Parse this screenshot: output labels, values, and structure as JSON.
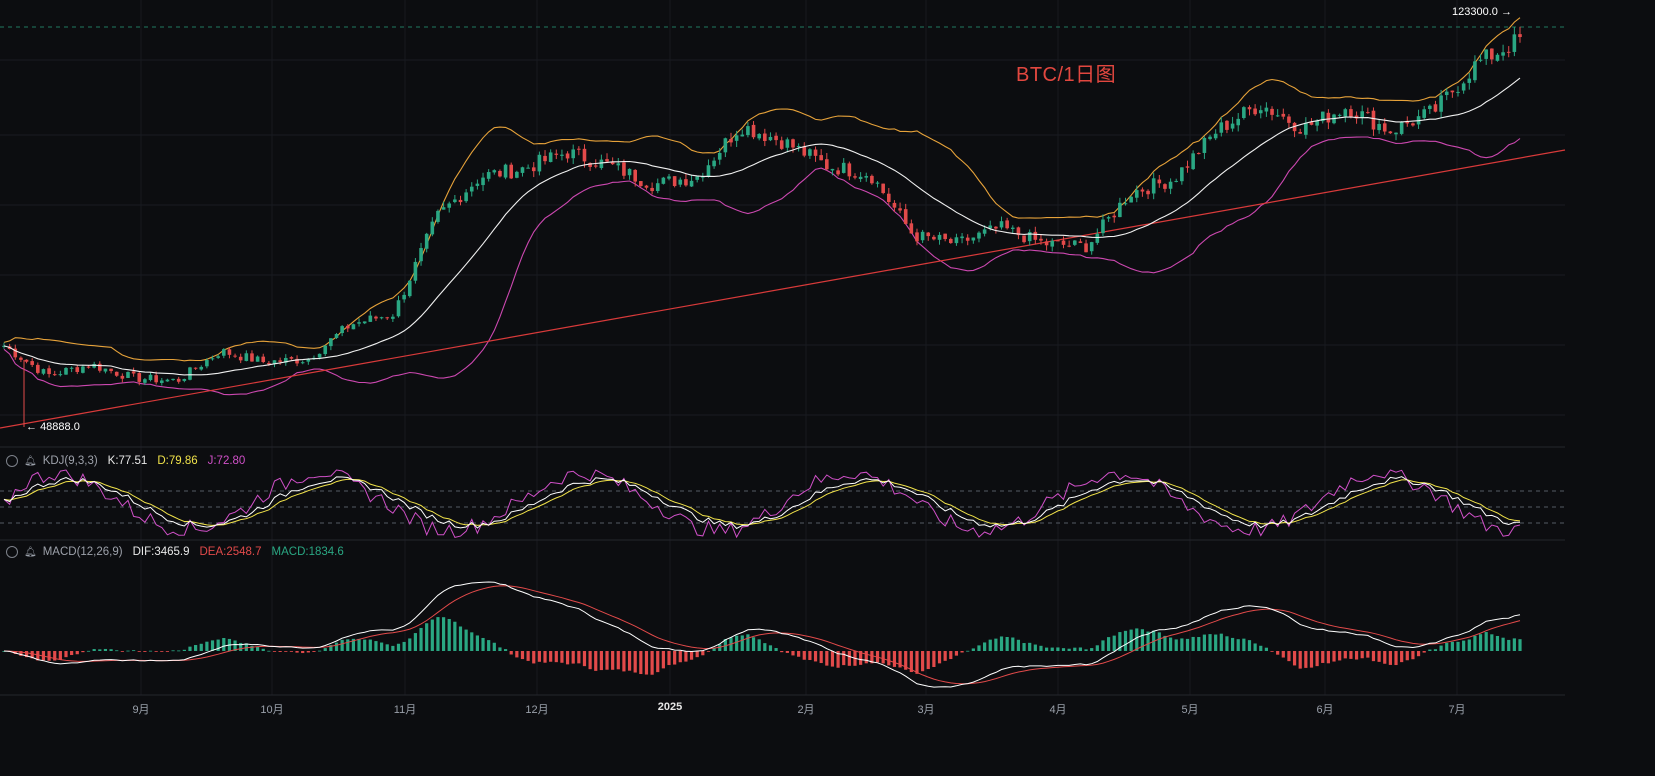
{
  "title": "BTC/1日图",
  "price_markers": {
    "high": "123300.0",
    "low": "48888.0"
  },
  "indicators": {
    "kdj": {
      "name": "KDJ(9,3,3)",
      "k": "K:77.51",
      "d": "D:79.86",
      "j": "J:72.80"
    },
    "macd": {
      "name": "MACD(12,26,9)",
      "dif": "DIF:3465.9",
      "dea": "DEA:2548.7",
      "macd": "MACD:1834.6"
    }
  },
  "x_axis": {
    "labels": [
      "9月",
      "10月",
      "11月",
      "12月",
      "2025",
      "2月",
      "3月",
      "4月",
      "5月",
      "6月",
      "7月"
    ]
  },
  "colors": {
    "background": "#0c0d10",
    "up": "#2aa783",
    "down": "#e24a4a",
    "bb_upper": "#e6a23a",
    "bb_mid": "#f0f0f0",
    "bb_lower": "#cc48b0",
    "trendline": "#d83a3a",
    "kdj_k": "#ffffff",
    "kdj_d": "#f0e24a",
    "kdj_j": "#d050c8",
    "macd_dif": "#ffffff",
    "macd_dea": "#e24a4a"
  },
  "chart_data": [
    {
      "type": "candlestick",
      "title": "BTC/1日图",
      "series": [
        {
          "name": "close (approx, sampled)",
          "x": [
            "Aug-1",
            "Aug-10",
            "Aug-20",
            "Sep-1",
            "Sep-10",
            "Sep-20",
            "Oct-1",
            "Oct-10",
            "Oct-20",
            "Nov-1",
            "Nov-10",
            "Nov-20",
            "Dec-1",
            "Dec-10",
            "Dec-20",
            "Jan-1",
            "Jan-10",
            "Jan-20",
            "Feb-1",
            "Feb-10",
            "Feb-20",
            "Mar-1",
            "Mar-10",
            "Mar-20",
            "Apr-1",
            "Apr-10",
            "Apr-20",
            "May-1",
            "May-10",
            "May-20",
            "Jun-1",
            "Jun-10",
            "Jun-20",
            "Jul-1",
            "Jul-10",
            "Jul-14"
          ],
          "values": [
            64000,
            58500,
            60500,
            58000,
            57500,
            63000,
            61000,
            61500,
            68000,
            70000,
            88000,
            95500,
            97000,
            100000,
            97500,
            94000,
            95500,
            105000,
            102000,
            97500,
            96000,
            84500,
            83000,
            86000,
            83000,
            82500,
            92500,
            95000,
            104000,
            109000,
            104500,
            108500,
            104000,
            107500,
            116500,
            121000
          ]
        }
      ],
      "indicators_on_chart": [
        "Bollinger Bands (upper, middle, lower)",
        "trendline"
      ],
      "annotations": [
        "123300.0",
        "48888.0"
      ]
    },
    {
      "type": "line",
      "title": "KDJ(9,3,3)",
      "series": [
        {
          "name": "K",
          "last": 77.51
        },
        {
          "name": "D",
          "last": 79.86
        },
        {
          "name": "J",
          "last": 72.8
        }
      ]
    },
    {
      "type": "bar",
      "title": "MACD(12,26,9)",
      "series": [
        {
          "name": "DIF",
          "last": 3465.9
        },
        {
          "name": "DEA",
          "last": 2548.7
        },
        {
          "name": "MACD",
          "last": 1834.6
        }
      ]
    }
  ]
}
